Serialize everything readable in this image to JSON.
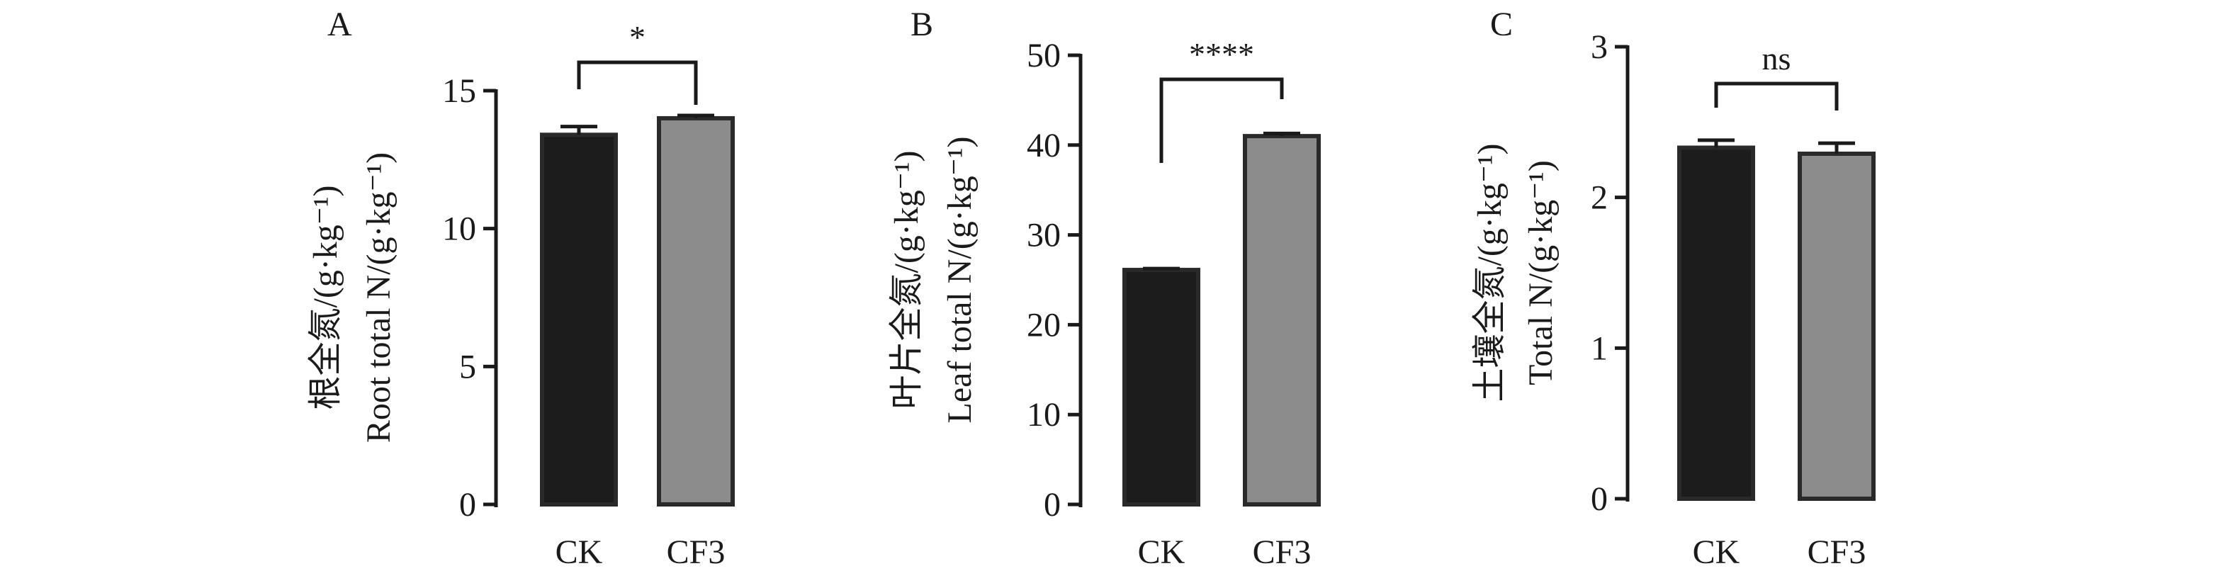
{
  "chart_data": [
    {
      "type": "bar",
      "panel_label": "A",
      "categories": [
        "CK",
        "CF3"
      ],
      "values": [
        13.4,
        14.0
      ],
      "errors": [
        0.3,
        0.1
      ],
      "bar_colors": [
        "#1c1c1c",
        "#8c8c8c"
      ],
      "ylabel_cn": "根全氮/(g·kg⁻¹)",
      "ylabel_en": "Root total N/(g·kg⁻¹)",
      "ylim": [
        0,
        15
      ],
      "yticks": [
        0,
        5,
        10,
        15
      ],
      "ytick_labels": [
        "0",
        "5",
        "10",
        "15"
      ],
      "significance": "*"
    },
    {
      "type": "bar",
      "panel_label": "B",
      "categories": [
        "CK",
        "CF3"
      ],
      "values": [
        26.1,
        41.0
      ],
      "errors": [
        0.15,
        0.3
      ],
      "bar_colors": [
        "#1c1c1c",
        "#8c8c8c"
      ],
      "ylabel_cn": "叶片全氮/(g·kg⁻¹)",
      "ylabel_en": "Leaf total N/(g·kg⁻¹)",
      "ylim": [
        0,
        50
      ],
      "yticks": [
        0,
        10,
        20,
        30,
        40,
        50
      ],
      "ytick_labels": [
        "0",
        "10",
        "20",
        "30",
        "40",
        "50"
      ],
      "significance": "****"
    },
    {
      "type": "bar",
      "panel_label": "C",
      "categories": [
        "CK",
        "CF3"
      ],
      "values": [
        2.33,
        2.29
      ],
      "errors": [
        0.05,
        0.07
      ],
      "bar_colors": [
        "#1c1c1c",
        "#8c8c8c"
      ],
      "ylabel_cn": "土壤全氮/(g·kg⁻¹)",
      "ylabel_en": "Total N/(g·kg⁻¹)",
      "ylim": [
        0,
        3
      ],
      "yticks": [
        0,
        1,
        2,
        3
      ],
      "ytick_labels": [
        "0",
        "1",
        "2",
        "3"
      ],
      "significance": "ns"
    }
  ]
}
